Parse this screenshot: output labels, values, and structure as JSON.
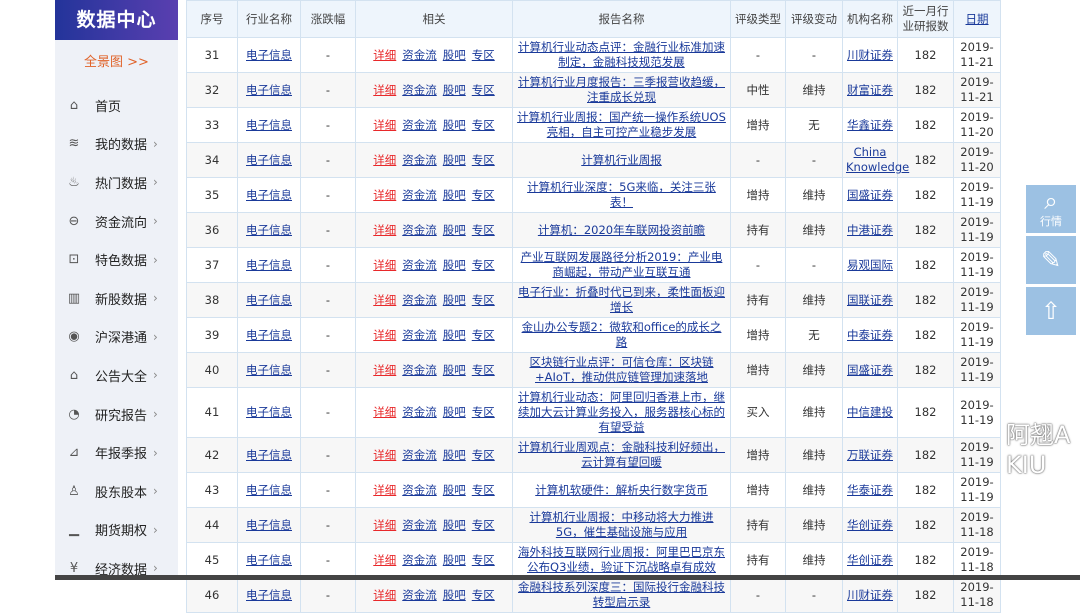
{
  "sidebar": {
    "title": "数据中心",
    "overview": "全景图 >>",
    "items": [
      {
        "label": "首页",
        "icon": "home-icon",
        "g": "⌂",
        "chev": false
      },
      {
        "label": "我的数据",
        "icon": "layers-icon",
        "g": "≋",
        "chev": true
      },
      {
        "label": "热门数据",
        "icon": "flame-icon",
        "g": "♨",
        "chev": true
      },
      {
        "label": "资金流向",
        "icon": "money-flow-icon",
        "g": "⊖",
        "chev": true
      },
      {
        "label": "特色数据",
        "icon": "bookmark-icon",
        "g": "⊡",
        "chev": true
      },
      {
        "label": "新股数据",
        "icon": "bars-icon",
        "g": "▥",
        "chev": true
      },
      {
        "label": "沪深港通",
        "icon": "globe-icon",
        "g": "◉",
        "chev": true
      },
      {
        "label": "公告大全",
        "icon": "briefcase-icon",
        "g": "⌂",
        "chev": true
      },
      {
        "label": "研究报告",
        "icon": "pie-chart-icon",
        "g": "◔",
        "chev": true
      },
      {
        "label": "年报季报",
        "icon": "line-chart-icon",
        "g": "⊿",
        "chev": true
      },
      {
        "label": "股东股本",
        "icon": "user-icon",
        "g": "♙",
        "chev": true
      },
      {
        "label": "期货期权",
        "icon": "bar-chart-icon",
        "g": "▁",
        "chev": true
      },
      {
        "label": "经济数据",
        "icon": "yen-icon",
        "g": "¥",
        "chev": true
      }
    ]
  },
  "table": {
    "headers": [
      "序号",
      "行业名称",
      "涨跌幅",
      "相关",
      "报告名称",
      "评级类型",
      "评级变动",
      "机构名称",
      "近一月行业研报数",
      "日期"
    ],
    "related": [
      "详细",
      "资金流",
      "股吧",
      "专区"
    ],
    "rows": [
      [
        "31",
        "电子信息",
        "-",
        "计算机行业动态点评：金融行业标准加速制定，金融科技规范发展",
        "-",
        "-",
        "川财证券",
        "182",
        "2019-11-21"
      ],
      [
        "32",
        "电子信息",
        "-",
        "计算机行业月度报告：三季报营收趋缓，注重成长兑现",
        "中性",
        "维持",
        "财富证券",
        "182",
        "2019-11-21"
      ],
      [
        "33",
        "电子信息",
        "-",
        "计算机行业周报：国产统一操作系统UOS亮相，自主可控产业稳步发展",
        "增持",
        "无",
        "华鑫证券",
        "182",
        "2019-11-20"
      ],
      [
        "34",
        "电子信息",
        "-",
        "计算机行业周报",
        "-",
        "-",
        "China Knowledge",
        "182",
        "2019-11-20"
      ],
      [
        "35",
        "电子信息",
        "-",
        "计算机行业深度：5G来临，关注三张表！",
        "增持",
        "维持",
        "国盛证券",
        "182",
        "2019-11-19"
      ],
      [
        "36",
        "电子信息",
        "-",
        "计算机：2020年车联网投资前瞻",
        "持有",
        "维持",
        "中港证券",
        "182",
        "2019-11-19"
      ],
      [
        "37",
        "电子信息",
        "-",
        "产业互联网发展路径分析2019：产业电商崛起，带动产业互联互通",
        "-",
        "-",
        "易观国际",
        "182",
        "2019-11-19"
      ],
      [
        "38",
        "电子信息",
        "-",
        "电子行业：折叠时代已到来，柔性面板迎增长",
        "持有",
        "维持",
        "国联证券",
        "182",
        "2019-11-19"
      ],
      [
        "39",
        "电子信息",
        "-",
        "金山办公专题2：微软和office的成长之路",
        "增持",
        "无",
        "中泰证券",
        "182",
        "2019-11-19"
      ],
      [
        "40",
        "电子信息",
        "-",
        "区块链行业点评：可信仓库：区块链+AIoT，推动供应链管理加速落地",
        "增持",
        "维持",
        "国盛证券",
        "182",
        "2019-11-19"
      ],
      [
        "41",
        "电子信息",
        "-",
        "计算机行业动态：阿里回归香港上市，继续加大云计算业务投入，服务器核心标的有望受益",
        "买入",
        "维持",
        "中信建投",
        "182",
        "2019-11-19"
      ],
      [
        "42",
        "电子信息",
        "-",
        "计算机行业周观点：金融科技利好频出，云计算有望回暖",
        "增持",
        "维持",
        "万联证券",
        "182",
        "2019-11-19"
      ],
      [
        "43",
        "电子信息",
        "-",
        "计算机软硬件：解析央行数字货币",
        "增持",
        "维持",
        "华泰证券",
        "182",
        "2019-11-19"
      ],
      [
        "44",
        "电子信息",
        "-",
        "计算机行业周报：中移动将大力推进5G，催生基础设施与应用",
        "持有",
        "维持",
        "华创证券",
        "182",
        "2019-11-18"
      ],
      [
        "45",
        "电子信息",
        "-",
        "海外科技互联网行业周报：阿里巴巴京东公布Q3业绩，验证下沉战略卓有成效",
        "持有",
        "维持",
        "华创证券",
        "182",
        "2019-11-18"
      ],
      [
        "46",
        "电子信息",
        "-",
        "金融科技系列深度三：国际投行金融科技转型启示录",
        "-",
        "-",
        "川财证券",
        "182",
        "2019-11-18"
      ]
    ]
  },
  "float_buttons": [
    {
      "icon": "search-icon",
      "g": "⌕",
      "label": "行情"
    },
    {
      "icon": "edit-icon",
      "g": "✎",
      "label": ""
    },
    {
      "icon": "arrow-up-icon",
      "g": "⇧",
      "label": ""
    }
  ],
  "watermark": "阿翘AKIU",
  "colors": {
    "header": "#2a3a9e",
    "accent": "#e0632a",
    "link": "#1a3a9a",
    "detail": "#e8282a"
  }
}
